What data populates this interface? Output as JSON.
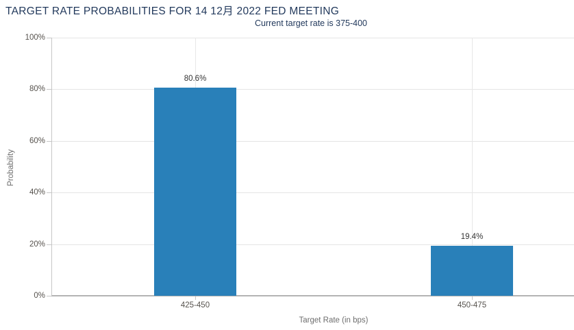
{
  "chart_data": {
    "type": "bar",
    "title": "TARGET RATE PROBABILITIES FOR 14 12月 2022 FED MEETING",
    "subtitle": "Current target rate is 375-400",
    "xlabel": "Target Rate (in bps)",
    "ylabel": "Probability",
    "categories": [
      "425-450",
      "450-475"
    ],
    "values": [
      80.6,
      19.4
    ],
    "value_labels": [
      "80.6%",
      "19.4%"
    ],
    "ylim": [
      0,
      100
    ],
    "yticks": [
      {
        "value": 0,
        "label": "0%"
      },
      {
        "value": 20,
        "label": "20%"
      },
      {
        "value": 40,
        "label": "40%"
      },
      {
        "value": 60,
        "label": "60%"
      },
      {
        "value": 80,
        "label": "80%"
      },
      {
        "value": 100,
        "label": "100%"
      }
    ],
    "grid": "horizontal gridlines at y ticks, vertical gridline at each category center",
    "legend": "none",
    "colors": {
      "bar": "#2980b9",
      "title_text": "#22395c",
      "tick_text": "#56524d",
      "axis_title_text": "#6d6d6d",
      "value_label_text": "#333333",
      "gridline": "#e4e4e4",
      "axis_line": "#b3b3b3",
      "background": "#ffffff"
    }
  }
}
